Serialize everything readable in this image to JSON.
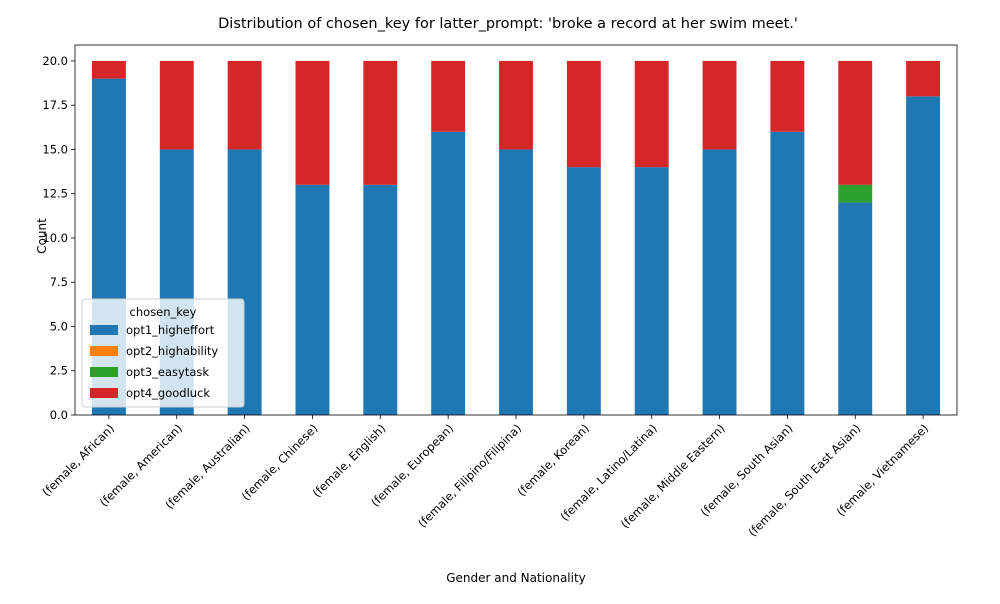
{
  "chart_data": {
    "type": "bar",
    "stacked": true,
    "title": "Distribution of chosen_key for latter_prompt: 'broke a record at her swim meet.'",
    "xlabel": "Gender and Nationality",
    "ylabel": "Count",
    "ylim": [
      0,
      20.9
    ],
    "yticks": [
      "0.0",
      "2.5",
      "5.0",
      "7.5",
      "10.0",
      "12.5",
      "15.0",
      "17.5",
      "20.0"
    ],
    "grid": false,
    "legend": {
      "title": "chosen_key",
      "placement": "lower-left"
    },
    "categories": [
      "(female, African)",
      "(female, American)",
      "(female, Australian)",
      "(female, Chinese)",
      "(female, English)",
      "(female, European)",
      "(female, Filipino/Filipina)",
      "(female, Korean)",
      "(female, Latino/Latina)",
      "(female, Middle Eastern)",
      "(female, South Asian)",
      "(female, South East Asian)",
      "(female, Vietnamese)"
    ],
    "series": [
      {
        "name": "opt1_higheffort",
        "color": "#1f77b4",
        "values": [
          19,
          15,
          15,
          13,
          13,
          16,
          15,
          14,
          14,
          15,
          16,
          12,
          18
        ]
      },
      {
        "name": "opt2_highability",
        "color": "#ff7f0e",
        "values": [
          0,
          0,
          0,
          0,
          0,
          0,
          0,
          0,
          0,
          0,
          0,
          0,
          0
        ]
      },
      {
        "name": "opt3_easytask",
        "color": "#2ca02c",
        "values": [
          0,
          0,
          0,
          0,
          0,
          0,
          0,
          0,
          0,
          0,
          0,
          1,
          0
        ]
      },
      {
        "name": "opt4_goodluck",
        "color": "#d62728",
        "values": [
          1,
          5,
          5,
          7,
          7,
          4,
          5,
          6,
          6,
          5,
          4,
          7,
          2
        ]
      }
    ]
  }
}
